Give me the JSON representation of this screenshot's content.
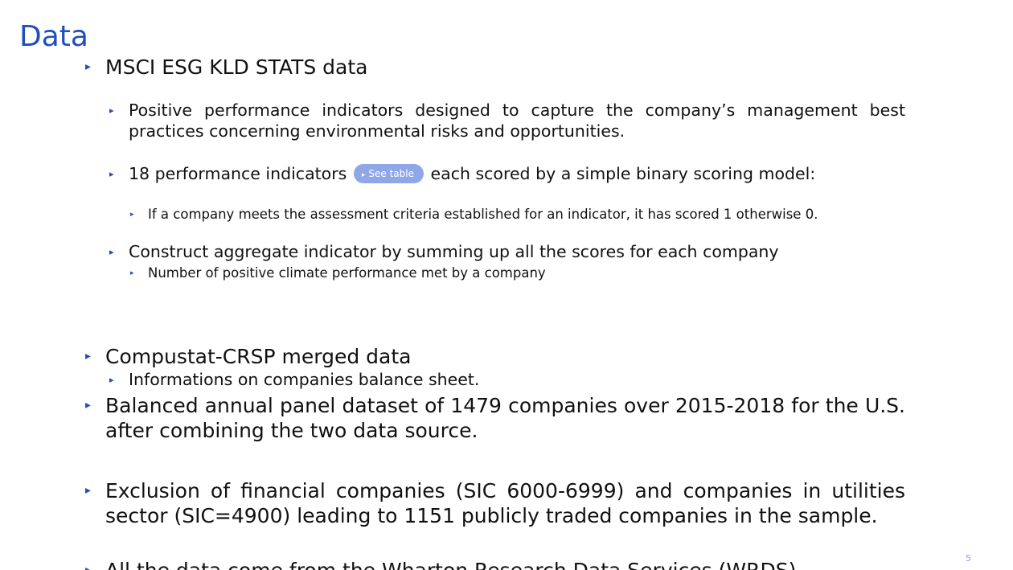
{
  "slide": {
    "title": "Data",
    "bullet_glyph": "▸",
    "items": {
      "msci": "MSCI ESG KLD STATS data",
      "positive": "Positive performance indicators designed to capture the company’s management best practices concerning environmental risks and opportunities.",
      "eighteen_before": "18 performance indicators",
      "see_table_icon": "▸",
      "see_table_label": "See table",
      "eighteen_after": "each scored by a simple binary scoring model:",
      "criteria": "If a company meets the assessment criteria established for an indicator, it has scored 1 otherwise 0.",
      "construct": "Construct aggregate indicator by summing up all the scores for each company",
      "number": "Number of positive climate performance met by a company",
      "compustat": "Compustat-CRSP merged data",
      "informations": "Informations on companies balance sheet.",
      "balanced": "Balanced annual panel dataset of 1479 companies over 2015-2018 for the U.S. after combining the two data source.",
      "exclusion": "Exclusion of financial companies (SIC 6000-6999) and companies in utilities sector (SIC=4900) leading to 1151 publicly traded companies in the sample.",
      "allthe": "All the data come from the Wharton Research Data Services (WRDS)."
    },
    "page_number": "5"
  },
  "colors": {
    "accent": "#1f4fbf",
    "pill": "#8fa6e8",
    "text": "#111111"
  }
}
